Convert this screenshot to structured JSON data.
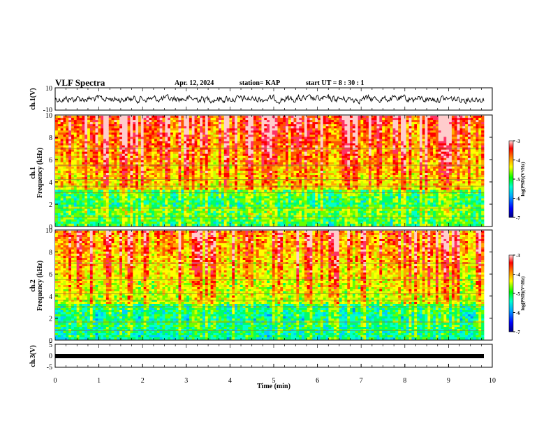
{
  "header": {
    "title": "VLF Spectra",
    "date": "Apr. 12, 2024",
    "station": "station= KAP",
    "start_ut": "start  UT  =  8 : 30 : 1"
  },
  "chart_data": [
    {
      "type": "line",
      "name": "ch1-waveform",
      "ylabel": "ch.1(V)",
      "ylim": [
        -10,
        10
      ],
      "yticks": [
        -10,
        10
      ],
      "xlim": [
        0,
        10
      ],
      "x_range_data": [
        0,
        9.8
      ]
    },
    {
      "type": "heatmap",
      "name": "ch1-spectrogram",
      "ylabel": "ch.1\nFrequency (kHz)",
      "ylim": [
        0,
        10
      ],
      "yticks": [
        0,
        2,
        4,
        6,
        8,
        10
      ],
      "colorbar": {
        "label": "log(PSD)(V²/Hz)",
        "range": [
          -7,
          -3
        ],
        "ticks": [
          "-3",
          "-4",
          "-5",
          "-6",
          "-7"
        ],
        "colors": [
          "#000080",
          "#0000ff",
          "#00aaff",
          "#00ffcc",
          "#00ff00",
          "#ffff00",
          "#ff8800",
          "#ff0000",
          "#ffffff"
        ]
      }
    },
    {
      "type": "heatmap",
      "name": "ch2-spectrogram",
      "ylabel": "ch.2\nFrequency (kHz)",
      "ylim": [
        0,
        10
      ],
      "yticks": [
        0,
        2,
        4,
        6,
        8,
        10
      ],
      "colorbar": {
        "label": "log(PSD)(V²/Hz)",
        "range": [
          -7,
          -3
        ],
        "ticks": [
          "-3",
          "-4",
          "-5",
          "-6",
          "-7"
        ]
      }
    },
    {
      "type": "line",
      "name": "ch3-waveform",
      "ylabel": "ch.3(V)",
      "ylim": [
        -5,
        5
      ],
      "yticks": [
        -5,
        0,
        5
      ],
      "xlim": [
        0,
        10
      ],
      "xticks": [
        0,
        1,
        2,
        3,
        4,
        5,
        6,
        7,
        8,
        9,
        10
      ],
      "xlabel": "Time  (min)"
    }
  ]
}
